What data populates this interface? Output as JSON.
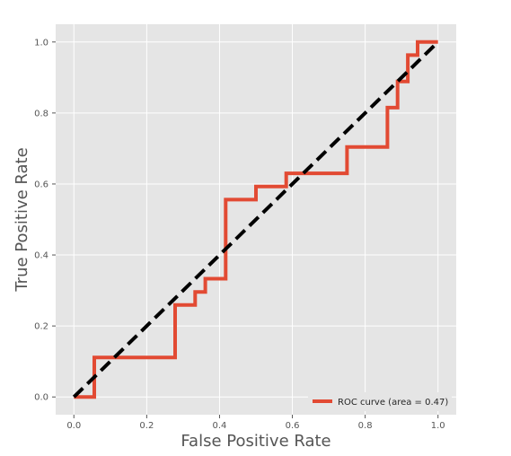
{
  "chart_data": {
    "type": "line",
    "title": "",
    "xlabel": "False Positive Rate",
    "ylabel": "True Positive Rate",
    "xlim": [
      -0.05,
      1.05
    ],
    "ylim": [
      -0.05,
      1.05
    ],
    "xticks": [
      0.0,
      0.2,
      0.4,
      0.6,
      0.8,
      1.0
    ],
    "yticks": [
      0.0,
      0.2,
      0.4,
      0.6,
      0.8,
      1.0
    ],
    "xtick_labels": [
      "0.0",
      "0.2",
      "0.4",
      "0.6",
      "0.8",
      "1.0"
    ],
    "ytick_labels": [
      "0.0",
      "0.2",
      "0.4",
      "0.6",
      "0.8",
      "1.0"
    ],
    "grid": true,
    "legend_position": "bottom-right",
    "series": [
      {
        "name": "ROC curve (area = 0.47)",
        "color": "#E24A33",
        "style": "solid",
        "x": [
          0.0,
          0.056,
          0.056,
          0.278,
          0.278,
          0.333,
          0.333,
          0.361,
          0.361,
          0.417,
          0.417,
          0.5,
          0.5,
          0.583,
          0.583,
          0.75,
          0.75,
          0.861,
          0.861,
          0.889,
          0.889,
          0.917,
          0.917,
          0.944,
          0.944,
          1.0
        ],
        "y": [
          0.0,
          0.0,
          0.111,
          0.111,
          0.259,
          0.259,
          0.296,
          0.296,
          0.333,
          0.333,
          0.556,
          0.556,
          0.593,
          0.593,
          0.63,
          0.63,
          0.704,
          0.704,
          0.815,
          0.815,
          0.889,
          0.889,
          0.963,
          0.963,
          1.0,
          1.0
        ]
      },
      {
        "color": "#000000",
        "style": "dashed",
        "x": [
          0.0,
          1.0
        ],
        "y": [
          0.0,
          1.0
        ]
      }
    ]
  },
  "colors": {
    "plot_background": "#E5E5E5",
    "grid": "#FFFFFF",
    "text": "#555555"
  }
}
